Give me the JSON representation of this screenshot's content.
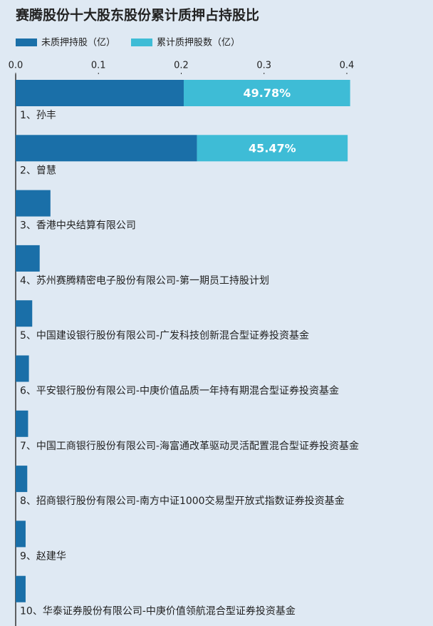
{
  "chart_data": {
    "type": "stacked-bar-horizontal",
    "title": "赛腾股份十大股东股份累计质押占持股比",
    "categories": [
      "1、孙丰",
      "2、曾慧",
      "3、香港中央结算有限公司",
      "4、苏州赛腾精密电子股份有限公司-第一期员工持股计划",
      "5、中国建设银行股份有限公司-广发科技创新混合型证券投资基金",
      "6、平安银行股份有限公司-中庚价值品质一年持有期混合型证券投资基金",
      "7、中国工商银行股份有限公司-海富通改革驱动灵活配置混合型证券投资基金",
      "8、招商银行股份有限公司-南方中证1000交易型开放式指数证券投资基金",
      "9、赵建华",
      "10、华泰证券股份有限公司-中庚价值领航混合型证券投资基金"
    ],
    "series": [
      {
        "name": "未质押持股（亿）",
        "color": "#1a6fa8",
        "values": [
          0.203,
          0.219,
          0.042,
          0.029,
          0.02,
          0.016,
          0.015,
          0.014,
          0.012,
          0.012
        ]
      },
      {
        "name": "累计质押股数（亿）",
        "color": "#3ebcd6",
        "values": [
          0.201,
          0.182,
          null,
          null,
          null,
          null,
          null,
          null,
          null,
          null
        ]
      }
    ],
    "ratio_labels": [
      "49.78%",
      "45.47%",
      null,
      null,
      null,
      null,
      null,
      null,
      null,
      null
    ],
    "xlim": [
      0,
      0.4
    ],
    "xticks": [
      {
        "value": 0,
        "label": "0.0"
      },
      0.1,
      0.2,
      0.3,
      0.4
    ]
  }
}
